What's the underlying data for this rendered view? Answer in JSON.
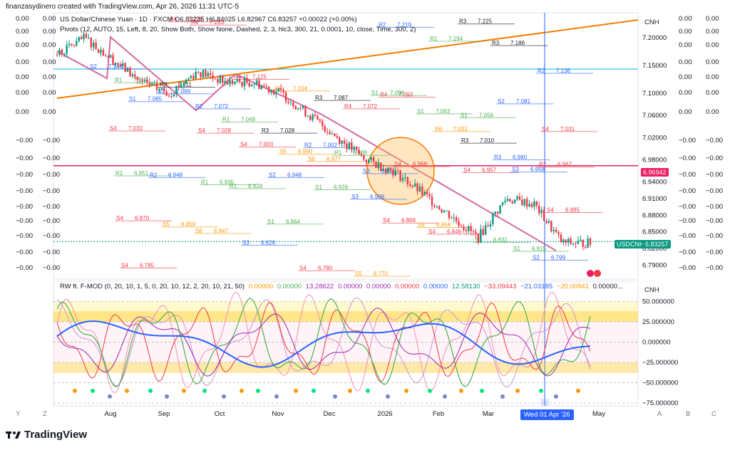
{
  "header": {
    "text": "finanzasydinero created with TradingView.com, Apr 26, 2026 11:31 UTC-5"
  },
  "legend": {
    "main": "US Dollar/Chinese Yuan · 1D · FXCM  O6.83235 H6.84025 L6.82967 C6.83257 +0.00022 (+0.00%)",
    "pivots": "Pivots (12, AUTO, 15, Left, 8, 20, Show Both, Show None, Dashed, 2, 3, hlc3, 300, 21, 0.0001, 10, close, Time, 300, 2)",
    "oscillator_name": "RW ft. F-MOD (0, 20, 10, 1, 5, 0, 20, 10, 12, 2, 20, 10, 21, 50)",
    "oscillator_values": [
      {
        "v": "0.00000",
        "color": "#ff9800"
      },
      {
        "v": "0.00000",
        "color": "#4caf50"
      },
      {
        "v": "13.28622",
        "color": "#9c27b0"
      },
      {
        "v": "0.00000",
        "color": "#9c27b0"
      },
      {
        "v": "0.00000",
        "color": "#9c27b0"
      },
      {
        "v": "0.00000",
        "color": "#f23645"
      },
      {
        "v": "0.00000",
        "color": "#2962ff"
      },
      {
        "v": "12.58130",
        "color": "#089981"
      },
      {
        "v": "−33.09443",
        "color": "#f23645"
      },
      {
        "v": "−21.03185",
        "color": "#2962ff"
      },
      {
        "v": "−20.00941",
        "color": "#ff9800"
      },
      {
        "v": "0.00000...",
        "color": "#131722"
      }
    ]
  },
  "right_axis_top": {
    "currency": "CNH",
    "ticks": [
      "7.20000",
      "7.15000",
      "7.10000",
      "7.06000",
      "7.02000",
      "6.98000",
      "6.94000",
      "6.91000",
      "6.88000",
      "6.85000",
      "6.82000",
      "6.79000"
    ]
  },
  "price_badges": {
    "pink_level": "6.96942",
    "symbol": "USDCNH",
    "last": "6.83257"
  },
  "left_labels": [
    "0.00",
    "0.00",
    "0.00",
    "0.00",
    "0.00",
    "0.00",
    "0.00",
    "−0.00",
    "−0.00",
    "−0.00",
    "−0.00",
    "−0.00",
    "−0.00",
    "−0.00",
    "−0.00",
    "−0.00"
  ],
  "far_right_labels": [
    "0.00",
    "0.00",
    "0.00",
    "0.00",
    "0.00",
    "0.00",
    "0.00",
    "−0.00",
    "−0.00",
    "−0.00",
    "−0.00",
    "−0.00",
    "−0.00",
    "−0.00",
    "−0.00",
    "−0.00"
  ],
  "right_axis_bottom": {
    "currency": "CNH",
    "ticks": [
      "50.000000",
      "25.000000",
      "0.000000",
      "−25.000000",
      "−50.000000",
      "−75.000000"
    ]
  },
  "x_axis": {
    "labels": [
      "Aug",
      "Sep",
      "Oct",
      "Nov",
      "Dec",
      "2026",
      "Feb",
      "Mar",
      "May"
    ],
    "selected": "Wed 01 Apr '26",
    "corner_left": [
      "Y",
      "Z"
    ],
    "corner_right": [
      "A",
      "B",
      "C"
    ]
  },
  "pivot_labels": [
    {
      "t": "S2",
      "v": "7.144",
      "c": "#2962ff"
    },
    {
      "t": "S1",
      "v": "7.085",
      "c": "#2962ff"
    },
    {
      "t": "S3",
      "v": "7.099",
      "c": "#2962ff"
    },
    {
      "t": "S4",
      "v": "7.028",
      "c": "#f23645"
    },
    {
      "t": "S4",
      "v": "7.003",
      "c": "#f23645"
    },
    {
      "t": "S5",
      "v": "6.990",
      "c": "#ff9800"
    },
    {
      "t": "S6",
      "v": "6.977",
      "c": "#ff9800"
    },
    {
      "t": "S3",
      "v": "6.955",
      "c": "#2962ff"
    },
    {
      "t": "S4",
      "v": "6.968",
      "c": "#f23645"
    },
    {
      "t": "S4",
      "v": "6.846",
      "c": "#f23645"
    },
    {
      "t": "S4",
      "v": "6.957",
      "c": "#f23645"
    },
    {
      "t": "S3",
      "v": "6.958",
      "c": "#2962ff"
    },
    {
      "t": "S4",
      "v": "6.885",
      "c": "#f23645"
    },
    {
      "t": "S4",
      "v": "6.870",
      "c": "#f23645"
    },
    {
      "t": "S5",
      "v": "6.859",
      "c": "#ff9800"
    },
    {
      "t": "S6",
      "v": "6.847",
      "c": "#ff9800"
    },
    {
      "t": "S3",
      "v": "6.826",
      "c": "#2962ff"
    },
    {
      "t": "S2",
      "v": "6.948",
      "c": "#2962ff"
    },
    {
      "t": "S1",
      "v": "6.926",
      "c": "#4caf50"
    },
    {
      "t": "S3",
      "v": "6.909",
      "c": "#2962ff"
    },
    {
      "t": "S4",
      "v": "6.866",
      "c": "#f23645"
    },
    {
      "t": "S5",
      "v": "6.858",
      "c": "#ff9800"
    },
    {
      "t": "S1",
      "v": "6.831",
      "c": "#4caf50"
    },
    {
      "t": "S1",
      "v": "6.815",
      "c": "#4caf50"
    },
    {
      "t": "S2",
      "v": "6.799",
      "c": "#2962ff"
    },
    {
      "t": "S4",
      "v": "6.785",
      "c": "#f23645"
    },
    {
      "t": "R4",
      "v": "7.229",
      "c": "#f23645"
    },
    {
      "t": "R4",
      "v": "7.223",
      "c": "#f23645"
    },
    {
      "t": "R4",
      "v": "7.125",
      "c": "#f23645"
    },
    {
      "t": "R6",
      "v": "7.104",
      "c": "#ff9800"
    },
    {
      "t": "R3",
      "v": "7.087",
      "c": "#131722"
    },
    {
      "t": "R4",
      "v": "7.072",
      "c": "#f23645"
    },
    {
      "t": "R4",
      "v": "7.093",
      "c": "#f23645"
    },
    {
      "t": "R6",
      "v": "7.031",
      "c": "#ff9800"
    },
    {
      "t": "R3",
      "v": "7.010",
      "c": "#131722"
    },
    {
      "t": "R3",
      "v": "6.980",
      "c": "#2962ff"
    },
    {
      "t": "R2",
      "v": "6.967",
      "c": "#f23645"
    },
    {
      "t": "R1",
      "v": "6.951",
      "c": "#4caf50"
    },
    {
      "t": "R2",
      "v": "6.948",
      "c": "#2962ff"
    },
    {
      "t": "R1",
      "v": "6.935",
      "c": "#4caf50"
    },
    {
      "t": "R1",
      "v": "6.928",
      "c": "#4caf50"
    },
    {
      "t": "S1",
      "v": "6.864",
      "c": "#4caf50"
    },
    {
      "t": "S4",
      "v": "6.780",
      "c": "#f23645"
    },
    {
      "t": "S5",
      "v": "6.770",
      "c": "#ff9800"
    },
    {
      "t": "R2",
      "v": "7.219",
      "c": "#2962ff"
    },
    {
      "t": "R1",
      "v": "7.194",
      "c": "#4caf50"
    },
    {
      "t": "R3",
      "v": "7.225",
      "c": "#131722"
    },
    {
      "t": "R3",
      "v": "7.186",
      "c": "#131722"
    },
    {
      "t": "R2",
      "v": "7.136",
      "c": "#2962ff"
    },
    {
      "t": "R1",
      "v": "7.119",
      "c": "#4caf50"
    },
    {
      "t": "R3",
      "v": "7.111",
      "c": "#131722"
    },
    {
      "t": "R2",
      "v": "7.072",
      "c": "#2962ff"
    },
    {
      "t": "R1",
      "v": "7.048",
      "c": "#4caf50"
    },
    {
      "t": "R3",
      "v": "7.028",
      "c": "#131722"
    },
    {
      "t": "R2",
      "v": "7.002",
      "c": "#2962ff"
    },
    {
      "t": "R1",
      "v": "6.988",
      "c": "#4caf50"
    },
    {
      "t": "S1",
      "v": "7.096",
      "c": "#4caf50"
    },
    {
      "t": "S1",
      "v": "7.063",
      "c": "#4caf50"
    },
    {
      "t": "S1",
      "v": "7.056",
      "c": "#4caf50"
    },
    {
      "t": "S2",
      "v": "7.081",
      "c": "#2962ff"
    },
    {
      "t": "S4",
      "v": "7.031",
      "c": "#f23645"
    },
    {
      "t": "S4",
      "v": "7.032",
      "c": "#f23645"
    }
  ],
  "chart_data": {
    "type": "candlestick",
    "symbol": "USDCNH",
    "x_labels": [
      "Aug",
      "Sep",
      "Oct",
      "Nov",
      "Dec",
      "2026",
      "Feb",
      "Mar",
      "Apr",
      "May"
    ],
    "close_anchors": [
      {
        "x": "Jul",
        "y": 7.17
      },
      {
        "x": "Aug",
        "y": 7.2
      },
      {
        "x": "Aug",
        "y": 7.16
      },
      {
        "x": "Sep",
        "y": 7.12
      },
      {
        "x": "Sep",
        "y": 7.1
      },
      {
        "x": "Oct",
        "y": 7.14
      },
      {
        "x": "Oct",
        "y": 7.12
      },
      {
        "x": "Nov",
        "y": 7.12
      },
      {
        "x": "Nov",
        "y": 7.1
      },
      {
        "x": "Dec",
        "y": 7.06
      },
      {
        "x": "Dec",
        "y": 7.02
      },
      {
        "x": "2026",
        "y": 6.98
      },
      {
        "x": "2026",
        "y": 6.96
      },
      {
        "x": "Feb",
        "y": 6.92
      },
      {
        "x": "Feb",
        "y": 6.88
      },
      {
        "x": "Mar",
        "y": 6.84
      },
      {
        "x": "Mar",
        "y": 6.91
      },
      {
        "x": "Apr",
        "y": 6.9
      },
      {
        "x": "Apr",
        "y": 6.83
      },
      {
        "x": "Apr",
        "y": 6.83
      }
    ],
    "last_price": 6.83257,
    "horizontal_level": 6.96942,
    "y_range": [
      6.77,
      7.24
    ],
    "oscillator_range": [
      -75,
      60
    ]
  }
}
